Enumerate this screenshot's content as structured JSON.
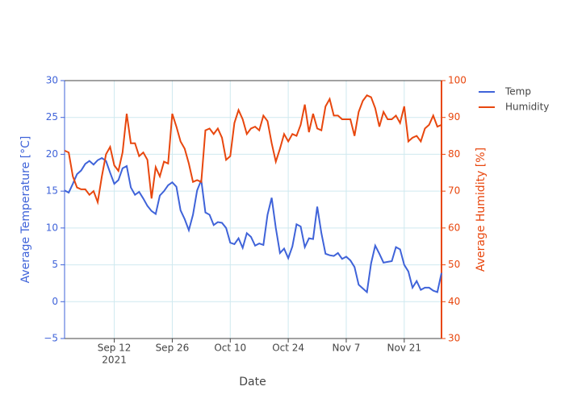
{
  "chart_data": {
    "type": "line",
    "x_label": "Date",
    "y_label": "Average Temperature [°C]",
    "y2_label": "Average Humidity [%]",
    "x": [
      "2021-08-31",
      "2021-09-01",
      "2021-09-02",
      "2021-09-03",
      "2021-09-04",
      "2021-09-05",
      "2021-09-06",
      "2021-09-07",
      "2021-09-08",
      "2021-09-09",
      "2021-09-10",
      "2021-09-11",
      "2021-09-12",
      "2021-09-13",
      "2021-09-14",
      "2021-09-15",
      "2021-09-16",
      "2021-09-17",
      "2021-09-18",
      "2021-09-19",
      "2021-09-20",
      "2021-09-21",
      "2021-09-22",
      "2021-09-23",
      "2021-09-24",
      "2021-09-25",
      "2021-09-26",
      "2021-09-27",
      "2021-09-28",
      "2021-09-29",
      "2021-09-30",
      "2021-10-01",
      "2021-10-02",
      "2021-10-03",
      "2021-10-04",
      "2021-10-05",
      "2021-10-06",
      "2021-10-07",
      "2021-10-08",
      "2021-10-09",
      "2021-10-10",
      "2021-10-11",
      "2021-10-12",
      "2021-10-13",
      "2021-10-14",
      "2021-10-15",
      "2021-10-16",
      "2021-10-17",
      "2021-10-18",
      "2021-10-19",
      "2021-10-20",
      "2021-10-21",
      "2021-10-22",
      "2021-10-23",
      "2021-10-24",
      "2021-10-25",
      "2021-10-26",
      "2021-10-27",
      "2021-10-28",
      "2021-10-29",
      "2021-10-30",
      "2021-10-31",
      "2021-11-01",
      "2021-11-02",
      "2021-11-03",
      "2021-11-04",
      "2021-11-05",
      "2021-11-06",
      "2021-11-07",
      "2021-11-08",
      "2021-11-09",
      "2021-11-10",
      "2021-11-11",
      "2021-11-12",
      "2021-11-13",
      "2021-11-14",
      "2021-11-15",
      "2021-11-16",
      "2021-11-17",
      "2021-11-18",
      "2021-11-19",
      "2021-11-20",
      "2021-11-21",
      "2021-11-22",
      "2021-11-23",
      "2021-11-24",
      "2021-11-25",
      "2021-11-26",
      "2021-11-27",
      "2021-11-28",
      "2021-11-29",
      "2021-11-30"
    ],
    "series": [
      {
        "name": "Temp",
        "color": "#3f63d9",
        "axis": "y",
        "values": [
          15.1,
          14.8,
          16,
          17.3,
          17.8,
          18.7,
          19.1,
          18.6,
          19.2,
          19.5,
          19.1,
          17.5,
          16,
          16.5,
          18.1,
          18.4,
          15.5,
          14.5,
          14.9,
          14,
          13,
          12.3,
          11.9,
          14.4,
          15,
          15.8,
          16.2,
          15.6,
          12.4,
          11.2,
          9.7,
          11.8,
          15.1,
          16.5,
          12.1,
          11.8,
          10.4,
          10.8,
          10.7,
          10,
          8,
          7.8,
          8.6,
          7.3,
          9.3,
          8.8,
          7.6,
          7.9,
          7.7,
          11.8,
          14.1,
          10,
          6.6,
          7.2,
          5.9,
          7.5,
          10.5,
          10.2,
          7.4,
          8.6,
          8.5,
          12.9,
          9.3,
          6.5,
          6.3,
          6.2,
          6.6,
          5.8,
          6.1,
          5.6,
          4.7,
          2.3,
          1.8,
          1.3,
          5.2,
          7.6,
          6.5,
          5.3,
          5.4,
          5.5,
          7.4,
          7.1,
          5,
          4.1,
          1.9,
          2.8,
          1.6,
          1.9,
          1.9,
          1.5,
          1.3,
          3.9
        ]
      },
      {
        "name": "Humidity",
        "color": "#e8470e",
        "axis": "y2",
        "values": [
          81,
          80.5,
          74,
          71,
          70.5,
          70.5,
          69,
          70,
          67,
          74,
          80,
          82,
          77,
          75.5,
          80.5,
          91,
          83,
          83,
          79.5,
          80.5,
          78.5,
          68,
          76.5,
          74,
          78,
          77.5,
          91,
          87.5,
          83.5,
          81.5,
          77.5,
          72.5,
          73,
          72.5,
          86.5,
          87,
          85.5,
          87,
          84.5,
          78.5,
          79.5,
          88.5,
          92,
          89.5,
          85.5,
          87,
          87.5,
          86.5,
          90.5,
          89,
          83,
          78,
          81.5,
          85.5,
          83.5,
          85.5,
          85,
          88,
          93.5,
          86,
          91,
          87,
          86.5,
          93,
          95,
          90.5,
          90.5,
          89.5,
          89.5,
          89.5,
          85,
          91.5,
          94.5,
          96,
          95.5,
          92.5,
          87.5,
          91.5,
          89.5,
          89.5,
          90.5,
          88.5,
          93,
          83.5,
          84.5,
          85,
          83.5,
          87,
          88,
          90.5,
          87.5,
          88
        ]
      }
    ],
    "xlim": [
      "2021-08-31",
      "2021-11-30"
    ],
    "xticks": [
      {
        "value": "2021-09-12",
        "label": "Sep 12"
      },
      {
        "value": "2021-09-26",
        "label": "Sep 26"
      },
      {
        "value": "2021-10-10",
        "label": "Oct 10"
      },
      {
        "value": "2021-10-24",
        "label": "Oct 24"
      },
      {
        "value": "2021-11-07",
        "label": "Nov 7"
      },
      {
        "value": "2021-11-21",
        "label": "Nov 21"
      }
    ],
    "x_year_label": "2021",
    "ylim": [
      -5,
      30
    ],
    "yticks": [
      {
        "value": -5,
        "label": "−5"
      },
      0,
      5,
      10,
      15,
      20,
      25,
      30
    ],
    "y2lim": [
      30,
      100
    ],
    "y2ticks": [
      30,
      40,
      50,
      60,
      70,
      80,
      90,
      100
    ],
    "grid": true,
    "legend": "top-right"
  }
}
